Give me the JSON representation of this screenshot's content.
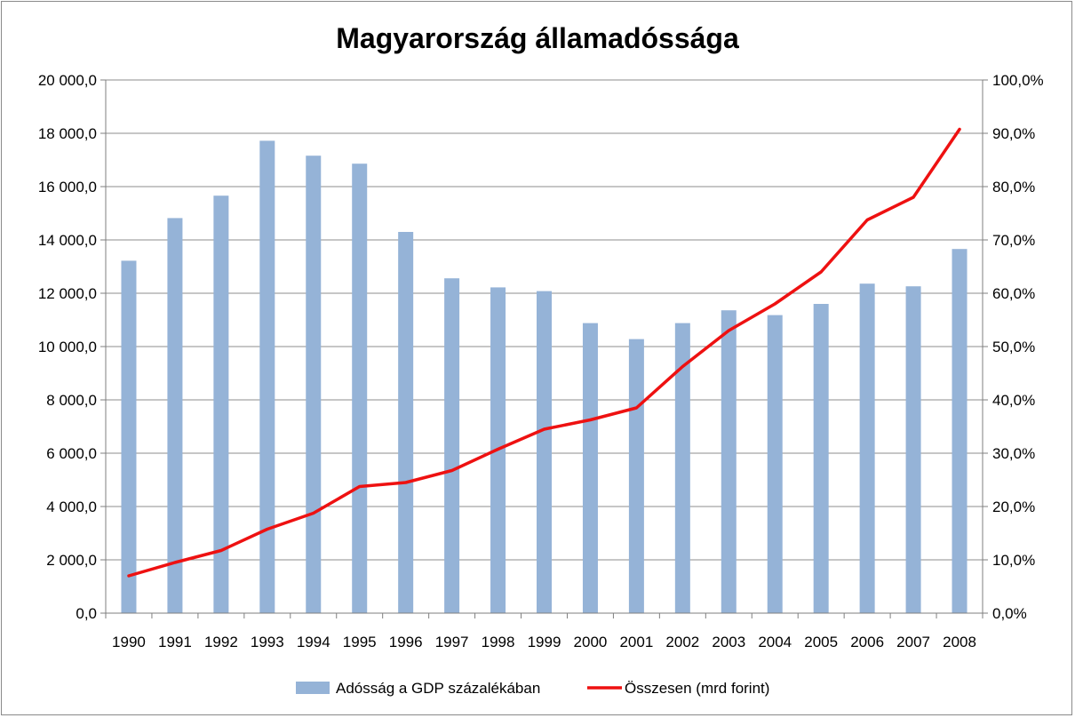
{
  "chart_data": {
    "type": "bar",
    "title": "Magyarország államadóssága",
    "categories": [
      "1990",
      "1991",
      "1992",
      "1993",
      "1994",
      "1995",
      "1996",
      "1997",
      "1998",
      "1999",
      "2000",
      "2001",
      "2002",
      "2003",
      "2004",
      "2005",
      "2006",
      "2007",
      "2008"
    ],
    "series": [
      {
        "name": "Adósság a GDP százalékában",
        "type": "bar",
        "axis": "right",
        "unit": "%",
        "color": "#95b3d7",
        "values": [
          66.1,
          74.1,
          78.3,
          88.6,
          85.8,
          84.3,
          71.5,
          62.8,
          61.1,
          60.4,
          54.4,
          51.4,
          54.4,
          56.8,
          55.9,
          58.0,
          61.8,
          61.3,
          68.3
        ]
      },
      {
        "name": "Összesen (mrd forint)",
        "type": "line",
        "axis": "left",
        "unit": "mrd forint",
        "color": "#ee1111",
        "values": [
          1400,
          1900,
          2350,
          3150,
          3750,
          4750,
          4900,
          5350,
          6150,
          6900,
          7250,
          7700,
          9250,
          10600,
          11600,
          12800,
          14750,
          15600,
          18150
        ]
      }
    ],
    "y_left": {
      "min": 0,
      "max": 20000,
      "step": 2000,
      "tick_labels": [
        "0,0",
        "2 000,0",
        "4 000,0",
        "6 000,0",
        "8 000,0",
        "10 000,0",
        "12 000,0",
        "14 000,0",
        "16 000,0",
        "18 000,0",
        "20 000,0"
      ]
    },
    "y_right": {
      "min": 0,
      "max": 100,
      "step": 10,
      "tick_labels": [
        "0,0%",
        "10,0%",
        "20,0%",
        "30,0%",
        "40,0%",
        "50,0%",
        "60,0%",
        "70,0%",
        "80,0%",
        "90,0%",
        "100,0%"
      ]
    },
    "grid": true,
    "legend_position": "bottom"
  }
}
